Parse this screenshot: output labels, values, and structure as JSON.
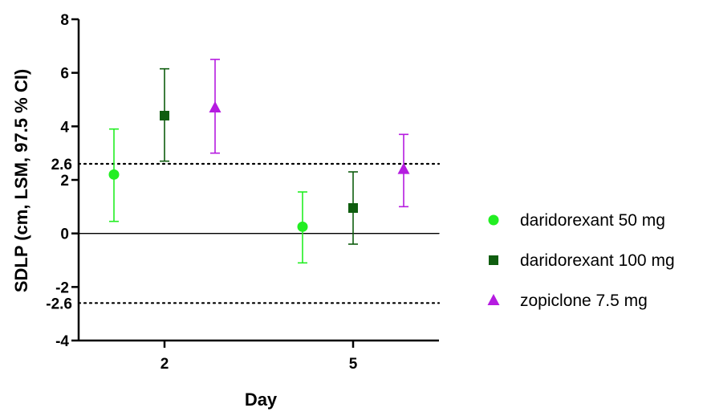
{
  "chart_data": {
    "type": "scatter",
    "xlabel": "Day",
    "ylabel": "SDLP (cm, LSM, 97.5 % CI)",
    "ylim": [
      -4,
      8
    ],
    "yticks": [
      -4,
      -2,
      0,
      2,
      4,
      6,
      8
    ],
    "categories": [
      "2",
      "5"
    ],
    "reference_lines": [
      {
        "value": 2.6,
        "label": "2.6",
        "style": "dotted"
      },
      {
        "value": -2.6,
        "label": "-2.6",
        "style": "dotted"
      },
      {
        "value": 0,
        "style": "solid"
      }
    ],
    "legend_position": "right",
    "series": [
      {
        "name": "daridorexant 50 mg",
        "marker": "circle",
        "color": "#22ee22",
        "points": [
          {
            "x": "2",
            "y": 2.2,
            "low": 0.45,
            "high": 3.9
          },
          {
            "x": "5",
            "y": 0.25,
            "low": -1.1,
            "high": 1.55
          }
        ]
      },
      {
        "name": "daridorexant 100 mg",
        "marker": "square",
        "color": "#0f5d0f",
        "points": [
          {
            "x": "2",
            "y": 4.4,
            "low": 2.7,
            "high": 6.15
          },
          {
            "x": "5",
            "y": 0.95,
            "low": -0.4,
            "high": 2.3
          }
        ]
      },
      {
        "name": "zopiclone 7.5 mg",
        "marker": "triangle",
        "color": "#b51be0",
        "points": [
          {
            "x": "2",
            "y": 4.7,
            "low": 3.0,
            "high": 6.5
          },
          {
            "x": "5",
            "y": 2.4,
            "low": 1.0,
            "high": 3.7
          }
        ]
      }
    ]
  }
}
